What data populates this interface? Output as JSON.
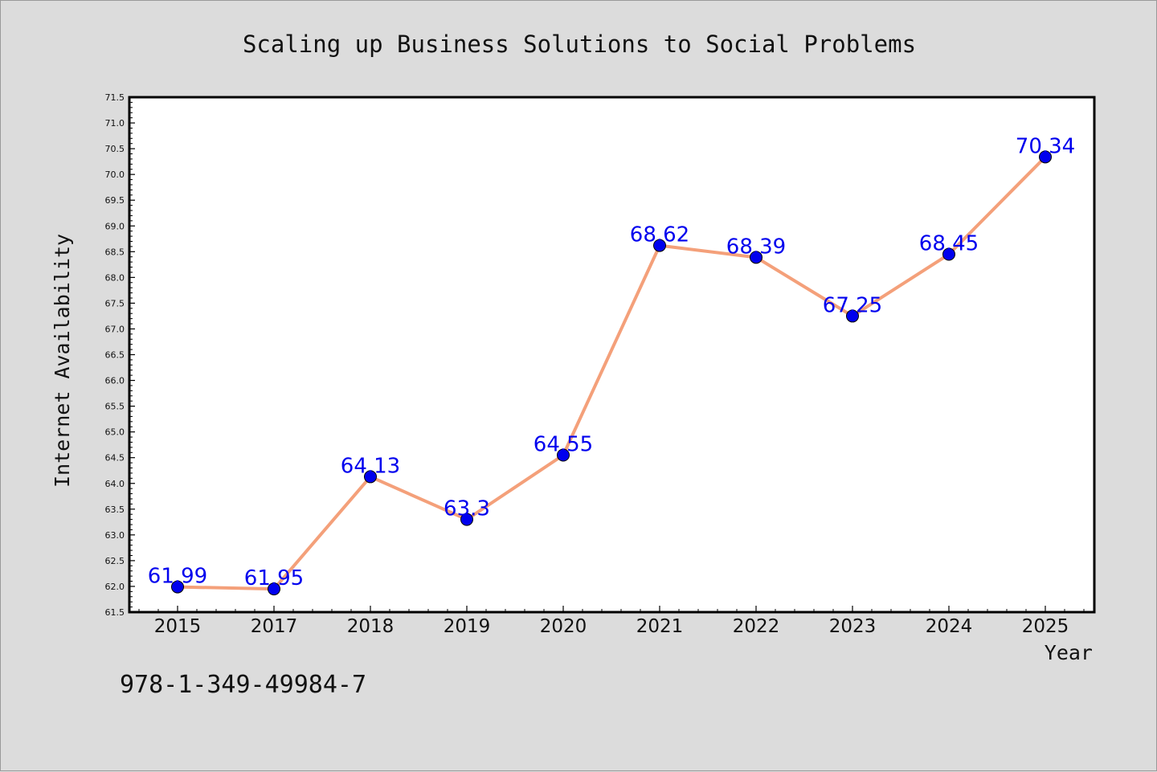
{
  "chart_data": {
    "type": "line",
    "title": "Scaling up Business Solutions to Social Problems",
    "xlabel": "Year",
    "ylabel": "Internet Availability",
    "categories": [
      "2015",
      "2017",
      "2018",
      "2019",
      "2020",
      "2021",
      "2022",
      "2023",
      "2024",
      "2025"
    ],
    "series": [
      {
        "values": [
          61.99,
          61.95,
          64.13,
          63.3,
          64.55,
          68.62,
          68.39,
          67.25,
          68.45,
          70.34
        ],
        "data_labels": [
          "61.99",
          "61.95",
          "64.13",
          "63.3",
          "64.55",
          "68.62",
          "68.39",
          "67.25",
          "68.45",
          "70.34"
        ],
        "line_color": "#f4a07a",
        "marker_color": "#0000ee",
        "label_color": "#0000ee"
      }
    ],
    "ylim": [
      61.5,
      71.5
    ],
    "yticks": [
      "61.5",
      "62.0",
      "62.5",
      "63.0",
      "63.5",
      "64.0",
      "64.5",
      "65.0",
      "65.5",
      "66.0",
      "66.5",
      "67.0",
      "67.5",
      "68.0",
      "68.5",
      "69.0",
      "69.5",
      "70.0",
      "70.5",
      "71.0",
      "71.5"
    ],
    "grid": false,
    "legend": "none"
  },
  "footer": {
    "isbn": "978-1-349-49984-7"
  },
  "colors": {
    "background": "#dcdcdc",
    "plot_background": "#ffffff"
  }
}
